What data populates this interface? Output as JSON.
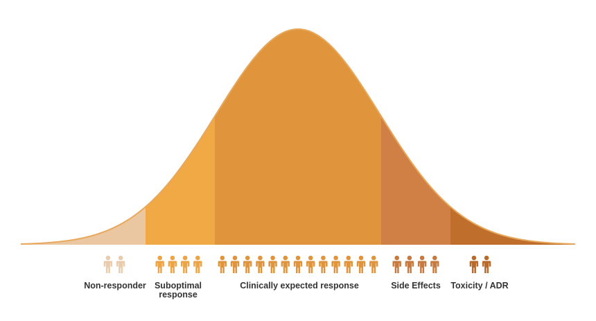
{
  "segments": [
    {
      "key": "non-responder",
      "label": "Non-responder",
      "count": 2,
      "color": "#EAC7A0",
      "icon_color": "#E9CCAE"
    },
    {
      "key": "suboptimal",
      "label": "Suboptimal response",
      "count": 4,
      "color": "#F0A945",
      "icon_color": "#EDA445"
    },
    {
      "key": "clinically-expected",
      "label": "Clinically expected response",
      "count": 13,
      "color": "#E0953D",
      "icon_color": "#E0953D"
    },
    {
      "key": "side-effects",
      "label": "Side Effects",
      "count": 4,
      "color": "#D08044",
      "icon_color": "#C77A3F"
    },
    {
      "key": "toxicity",
      "label": "Toxicity / ADR",
      "count": 2,
      "color": "#BF6E2C",
      "icon_color": "#B86A2A"
    }
  ],
  "labels": {
    "non_responder": "Non-responder",
    "suboptimal_line1": "Suboptimal",
    "suboptimal_line2": "response",
    "clinically_expected": "Clinically expected response",
    "side_effects": "Side Effects",
    "toxicity": "Toxicity / ADR"
  },
  "outline_color": "#E8A85C"
}
